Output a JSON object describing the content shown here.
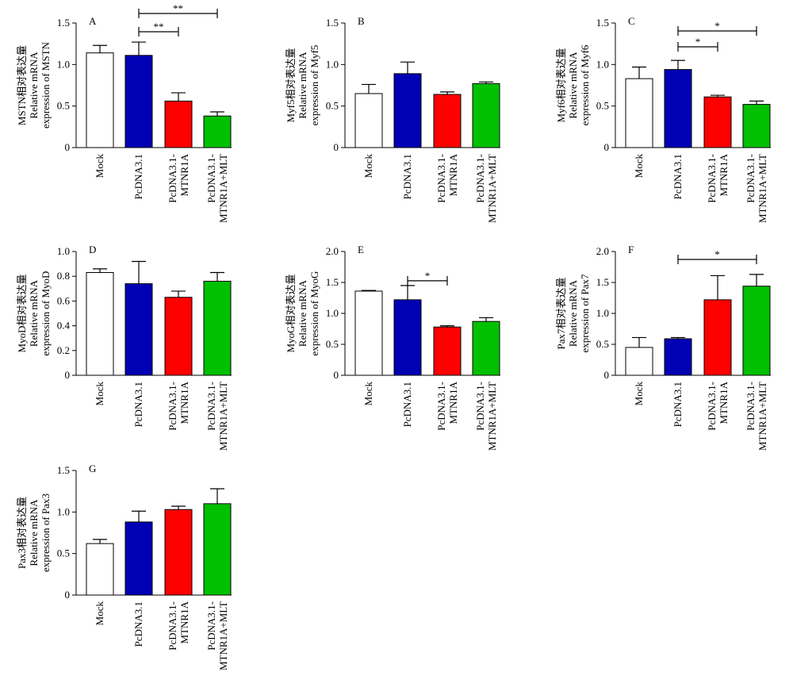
{
  "colors": {
    "mock": "#ffffff",
    "pcdna": "#0000b4",
    "mtnr1a": "#ff0000",
    "mlt": "#00c000",
    "stroke": "#000000"
  },
  "chart_data": [
    {
      "type": "bar",
      "panel": "A",
      "ylabel": [
        "MSTN相对表达量",
        "Relative mRNA",
        "expression of MSTN"
      ],
      "categories": [
        [
          "Mock"
        ],
        [
          "PcDNA3.1"
        ],
        [
          "PcDNA3.1-",
          "MTNR1A"
        ],
        [
          "PcDNA3.1-",
          "MTNR1A+MLT"
        ]
      ],
      "values": [
        1.14,
        1.11,
        0.56,
        0.38
      ],
      "errors": [
        0.09,
        0.16,
        0.1,
        0.05
      ],
      "ylim": [
        0,
        1.5
      ],
      "yticks": [
        0,
        0.5,
        1.0,
        1.5
      ],
      "ytick_labels": [
        "0",
        "0.5",
        "1.0",
        "1.5"
      ],
      "significance": [
        {
          "from": 1,
          "to": 2,
          "label": "**"
        },
        {
          "from": 1,
          "to": 3,
          "label": "**"
        }
      ]
    },
    {
      "type": "bar",
      "panel": "B",
      "ylabel": [
        "Myf5相对表达量",
        "Relative mRNA",
        "expression of Myf5"
      ],
      "categories": [
        [
          "Mock"
        ],
        [
          "PcDNA3.1"
        ],
        [
          "PcDNA3.1-",
          "MTNR1A"
        ],
        [
          "PcDNA3.1-",
          "MTNR1A+MLT"
        ]
      ],
      "values": [
        0.65,
        0.89,
        0.64,
        0.77
      ],
      "errors": [
        0.11,
        0.14,
        0.03,
        0.02
      ],
      "ylim": [
        0,
        1.5
      ],
      "yticks": [
        0,
        0.5,
        1.0,
        1.5
      ],
      "ytick_labels": [
        "0",
        "0.5",
        "1.0",
        "1.5"
      ],
      "significance": []
    },
    {
      "type": "bar",
      "panel": "C",
      "ylabel": [
        "Myf6相对表达量",
        "Relative mRNA",
        "expression of Myf6"
      ],
      "categories": [
        [
          "Mock"
        ],
        [
          "PcDNA3.1"
        ],
        [
          "PcDNA3.1-",
          "MTNR1A"
        ],
        [
          "PcDNA3.1-",
          "MTNR1A+MLT"
        ]
      ],
      "values": [
        0.83,
        0.94,
        0.61,
        0.52
      ],
      "errors": [
        0.14,
        0.11,
        0.02,
        0.04
      ],
      "ylim": [
        0,
        1.5
      ],
      "yticks": [
        0,
        0.5,
        1.0,
        1.5
      ],
      "ytick_labels": [
        "0",
        "0.5",
        "1.0",
        "1.5"
      ],
      "significance": [
        {
          "from": 1,
          "to": 2,
          "label": "*"
        },
        {
          "from": 1,
          "to": 3,
          "label": "*"
        }
      ]
    },
    {
      "type": "bar",
      "panel": "D",
      "ylabel": [
        "MyoD相对表达量",
        "Relative mRNA",
        "expression of MyoD"
      ],
      "categories": [
        [
          "Mock"
        ],
        [
          "PcDNA3.1"
        ],
        [
          "PcDNA3.1-",
          "MTNR1A"
        ],
        [
          "PcDNA3.1-",
          "MTNR1A+MLT"
        ]
      ],
      "values": [
        0.83,
        0.74,
        0.63,
        0.76
      ],
      "errors": [
        0.03,
        0.18,
        0.05,
        0.07
      ],
      "ylim": [
        0,
        1.0
      ],
      "yticks": [
        0,
        0.2,
        0.4,
        0.6,
        0.8,
        1.0
      ],
      "ytick_labels": [
        "0",
        "0.2",
        "0.4",
        "0.6",
        "0.8",
        "1.0"
      ],
      "significance": []
    },
    {
      "type": "bar",
      "panel": "E",
      "ylabel": [
        "MyoG相对表达量",
        "Relative mRNA",
        "expression of MyoG"
      ],
      "categories": [
        [
          "Mock"
        ],
        [
          "PcDNA3.1"
        ],
        [
          "PcDNA3.1-",
          "MTNR1A"
        ],
        [
          "PcDNA3.1-",
          "MTNR1A+MLT"
        ]
      ],
      "values": [
        1.36,
        1.22,
        0.78,
        0.87
      ],
      "errors": [
        0.01,
        0.23,
        0.02,
        0.06
      ],
      "ylim": [
        0,
        2.0
      ],
      "yticks": [
        0,
        0.5,
        1.0,
        1.5,
        2.0
      ],
      "ytick_labels": [
        "0",
        "0.5",
        "1.0",
        "1.5",
        "2.0"
      ],
      "significance": [
        {
          "from": 1,
          "to": 2,
          "label": "*"
        }
      ]
    },
    {
      "type": "bar",
      "panel": "F",
      "ylabel": [
        "Pax7相对表达量",
        "Relative mRNA",
        "expression of Pax7"
      ],
      "categories": [
        [
          "Mock"
        ],
        [
          "PcDNA3.1"
        ],
        [
          "PcDNA3.1-",
          "MTNR1A"
        ],
        [
          "PcDNA3.1-",
          "MTNR1A+MLT"
        ]
      ],
      "values": [
        0.45,
        0.59,
        1.22,
        1.44
      ],
      "errors": [
        0.16,
        0.02,
        0.39,
        0.19
      ],
      "ylim": [
        0,
        2.0
      ],
      "yticks": [
        0,
        0.5,
        1.0,
        1.5,
        2.0
      ],
      "ytick_labels": [
        "0",
        "0.5",
        "1.0",
        "1.5",
        "2.0"
      ],
      "significance": [
        {
          "from": 1,
          "to": 3,
          "label": "*"
        }
      ]
    },
    {
      "type": "bar",
      "panel": "G",
      "ylabel": [
        "Pax3相对表达量",
        "Relative mRNA",
        "expression of Pax3"
      ],
      "categories": [
        [
          "Mock"
        ],
        [
          "PcDNA3.1"
        ],
        [
          "PcDNA3.1-",
          "MTNR1A"
        ],
        [
          "PcDNA3.1-",
          "MTNR1A+MLT"
        ]
      ],
      "values": [
        0.62,
        0.88,
        1.03,
        1.1
      ],
      "errors": [
        0.05,
        0.13,
        0.04,
        0.18
      ],
      "ylim": [
        0,
        1.5
      ],
      "yticks": [
        0,
        0.5,
        1.0,
        1.5
      ],
      "ytick_labels": [
        "0",
        "0.5",
        "1.0",
        "1.5"
      ],
      "significance": []
    }
  ]
}
